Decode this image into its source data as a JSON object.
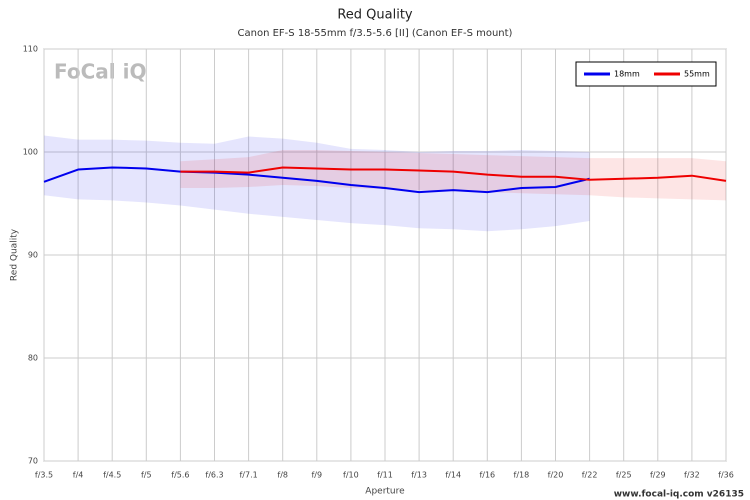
{
  "chart_data": {
    "type": "line",
    "title": "Red Quality",
    "subtitle": "Canon EF-S 18-55mm f/3.5-5.6 [II] (Canon EF-S mount)",
    "x_label": "Aperture",
    "y_label": "Red Quality",
    "logo": "FoCal iQ",
    "footer": "www.focal-iq.com  v26135",
    "categories": [
      "f/3.5",
      "f/4",
      "f/4.5",
      "f/5",
      "f/5.6",
      "f/6.3",
      "f/7.1",
      "f/8",
      "f/9",
      "f/10",
      "f/11",
      "f/13",
      "f/14",
      "f/16",
      "f/18",
      "f/20",
      "f/22",
      "f/25",
      "f/29",
      "f/32",
      "f/36"
    ],
    "ylim": [
      70,
      110
    ],
    "yticks": [
      70,
      80,
      90,
      100,
      110
    ],
    "grid": true,
    "legend": "top-right",
    "series": [
      {
        "name": "18mm",
        "color": "#0000ee",
        "values": [
          97.1,
          98.3,
          98.5,
          98.4,
          98.1,
          98.0,
          97.8,
          97.5,
          97.2,
          96.8,
          96.5,
          96.1,
          96.3,
          96.1,
          96.5,
          96.6,
          97.4,
          null,
          null,
          null,
          null
        ],
        "upper": [
          101.6,
          101.2,
          101.2,
          101.1,
          100.9,
          100.8,
          101.5,
          101.3,
          100.9,
          100.3,
          100.2,
          100.0,
          100.1,
          100.1,
          100.2,
          100.1,
          100.0,
          null,
          null,
          null,
          null
        ],
        "lower": [
          95.8,
          95.4,
          95.3,
          95.1,
          94.8,
          94.4,
          94.0,
          93.7,
          93.4,
          93.1,
          92.9,
          92.6,
          92.5,
          92.3,
          92.5,
          92.8,
          93.3,
          null,
          null,
          null,
          null
        ]
      },
      {
        "name": "55mm",
        "color": "#ee0000",
        "values": [
          null,
          null,
          null,
          null,
          98.1,
          98.1,
          98.0,
          98.5,
          98.4,
          98.3,
          98.3,
          98.2,
          98.1,
          97.8,
          97.6,
          97.6,
          97.3,
          97.4,
          97.5,
          97.7,
          97.2
        ],
        "upper": [
          null,
          null,
          null,
          null,
          99.1,
          99.3,
          99.5,
          100.2,
          100.2,
          100.1,
          100.0,
          99.9,
          99.8,
          99.7,
          99.6,
          99.5,
          99.4,
          99.4,
          99.4,
          99.4,
          99.1
        ],
        "lower": [
          null,
          null,
          null,
          null,
          96.5,
          96.5,
          96.6,
          96.8,
          96.7,
          96.5,
          96.4,
          96.3,
          96.2,
          96.1,
          96.0,
          95.9,
          95.8,
          95.6,
          95.5,
          95.4,
          95.3
        ]
      }
    ]
  }
}
